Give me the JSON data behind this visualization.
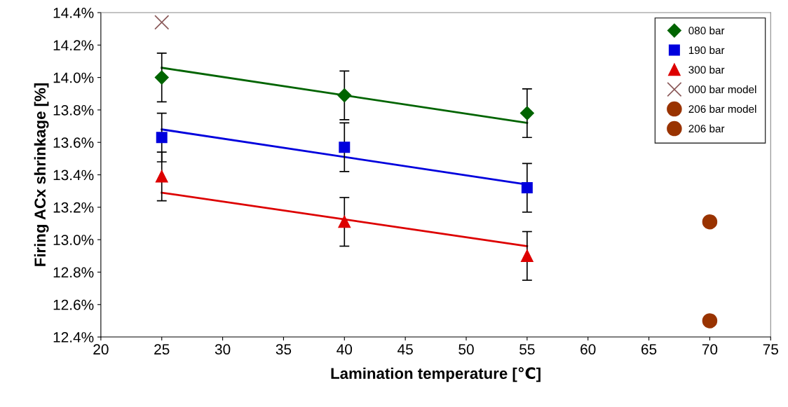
{
  "chart_data": {
    "type": "scatter",
    "xlabel": "Lamination temperature [℃]",
    "ylabel": "Firing ACx shrinkage [%]",
    "xlim": [
      20,
      75
    ],
    "xticks": [
      20,
      25,
      30,
      35,
      40,
      45,
      50,
      55,
      60,
      65,
      70,
      75
    ],
    "ylim": [
      12.4,
      14.4
    ],
    "yticks": [
      {
        "value": 12.4,
        "label": "12.4%"
      },
      {
        "value": 12.6,
        "label": "12.6%"
      },
      {
        "value": 12.8,
        "label": "12.8%"
      },
      {
        "value": 13.0,
        "label": "13.0%"
      },
      {
        "value": 13.2,
        "label": "13.2%"
      },
      {
        "value": 13.4,
        "label": "13.4%"
      },
      {
        "value": 13.6,
        "label": "13.6%"
      },
      {
        "value": 13.8,
        "label": "13.8%"
      },
      {
        "value": 14.0,
        "label": "14.0%"
      },
      {
        "value": 14.2,
        "label": "14.2%"
      },
      {
        "value": 14.4,
        "label": "14.4%"
      }
    ],
    "grid": false,
    "legend": "top right",
    "series": [
      {
        "name": "080 bar",
        "color": "#006400",
        "marker": "diamond",
        "x": [
          25,
          40,
          55
        ],
        "values": [
          14.0,
          13.89,
          13.78
        ],
        "errors": [
          0.15,
          0.15,
          0.15
        ]
      },
      {
        "name": "190 bar",
        "color": "#0000dd",
        "marker": "square",
        "x": [
          25,
          40,
          55
        ],
        "values": [
          13.63,
          13.57,
          13.32
        ],
        "errors": [
          0.15,
          0.15,
          0.15
        ]
      },
      {
        "name": "300 bar",
        "color": "#dd0000",
        "marker": "triangle",
        "x": [
          25,
          40,
          55
        ],
        "values": [
          13.39,
          13.11,
          12.9
        ],
        "errors": [
          0.15,
          0.15,
          0.15
        ]
      },
      {
        "name": "000 bar model",
        "color": "#8b5a5a",
        "marker": "cross",
        "x": [
          25
        ],
        "values": [
          14.34
        ]
      },
      {
        "name": "206 bar model",
        "color": "#993300",
        "marker": "circle",
        "x": [
          70
        ],
        "values": [
          13.11
        ]
      },
      {
        "name": "206 bar",
        "color": "#993300",
        "marker": "circle",
        "x": [
          70
        ],
        "values": [
          12.5
        ]
      },
      {
        "type": "line",
        "color": "#006400",
        "x": [
          25,
          55
        ],
        "values": [
          14.06,
          13.72
        ]
      },
      {
        "type": "line",
        "color": "#0000dd",
        "x": [
          25,
          55
        ],
        "values": [
          13.68,
          13.34
        ]
      },
      {
        "type": "line",
        "color": "#dd0000",
        "x": [
          25,
          55
        ],
        "values": [
          13.29,
          12.96
        ]
      }
    ]
  }
}
